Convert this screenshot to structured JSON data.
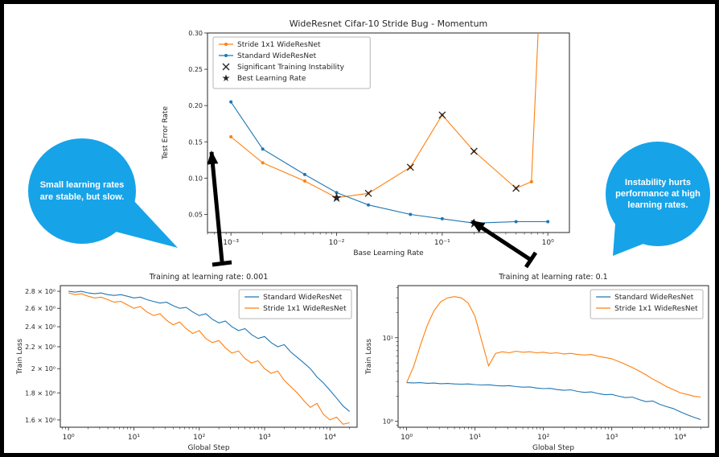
{
  "callouts": {
    "left": {
      "text": "Small learning rates are stable, but slow.",
      "color": "#17a3e8",
      "text_color": "#ffffff"
    },
    "right": {
      "text": "Instability hurts performance at high learning rates.",
      "color": "#17a3e8",
      "text_color": "#ffffff"
    }
  },
  "colors": {
    "standard": "#1f77b4",
    "stride": "#ff7f0e",
    "marker": "#262626",
    "frame": "#000000"
  },
  "chart_data": [
    {
      "type": "line",
      "title": "WideResnet Cifar-10 Stride Bug - Momentum",
      "title_size": 11,
      "xlabel": "Base Learning Rate",
      "ylabel": "Test Error Rate",
      "xscale": "log",
      "yscale": "linear",
      "xlim": [
        0.0006,
        1.6
      ],
      "ylim": [
        0.025,
        0.3
      ],
      "margins": {
        "l": 58,
        "r": 12,
        "t": 30,
        "b": 42
      },
      "xticks": [
        {
          "v": 0.001,
          "label": "10⁻³"
        },
        {
          "v": 0.01,
          "label": "10⁻²"
        },
        {
          "v": 0.1,
          "label": "10⁻¹"
        },
        {
          "v": 1,
          "label": "10⁰"
        }
      ],
      "yticks": [
        {
          "v": 0.05,
          "label": "0.05"
        },
        {
          "v": 0.1,
          "label": "0.10"
        },
        {
          "v": 0.15,
          "label": "0.15"
        },
        {
          "v": 0.2,
          "label": "0.20"
        },
        {
          "v": 0.25,
          "label": "0.25"
        },
        {
          "v": 0.3,
          "label": "0.30"
        }
      ],
      "legend_position": "upper left",
      "legend": [
        {
          "label": "Stride 1x1 WideResNet",
          "glyph": "line-dot",
          "color": "#ff7f0e"
        },
        {
          "label": "Standard WideResNet",
          "glyph": "line-dot",
          "color": "#1f77b4"
        },
        {
          "label": "Significant Training Instability",
          "glyph": "x",
          "color": "#262626"
        },
        {
          "label": "Best Learning Rate",
          "glyph": "star",
          "color": "#000000"
        }
      ],
      "series": [
        {
          "name": "Stride 1x1 WideResNet",
          "color": "#ff7f0e",
          "marker": "dot",
          "x": [
            0.001,
            0.002,
            0.005,
            0.01,
            0.02,
            0.05,
            0.1,
            0.2,
            0.5,
            0.7,
            1.0
          ],
          "y": [
            0.157,
            0.121,
            0.096,
            0.073,
            0.079,
            0.115,
            0.187,
            0.137,
            0.086,
            0.095,
            0.6
          ]
        },
        {
          "name": "Standard WideResNet",
          "color": "#1f77b4",
          "marker": "dot",
          "x": [
            0.001,
            0.002,
            0.005,
            0.01,
            0.02,
            0.05,
            0.1,
            0.2,
            0.5,
            1.0
          ],
          "y": [
            0.205,
            0.14,
            0.105,
            0.08,
            0.063,
            0.05,
            0.044,
            0.038,
            0.04,
            0.04
          ]
        }
      ],
      "markers": [
        {
          "type": "x",
          "color": "#262626",
          "label": "Significant Training Instability",
          "points": [
            [
              0.02,
              0.079
            ],
            [
              0.05,
              0.115
            ],
            [
              0.1,
              0.187
            ],
            [
              0.2,
              0.137
            ],
            [
              0.5,
              0.086
            ]
          ]
        },
        {
          "type": "star",
          "color": "#ff7f0e",
          "label": "Best Learning Rate (Stride 1x1)",
          "points": [
            [
              0.01,
              0.073
            ]
          ]
        },
        {
          "type": "star",
          "color": "#1f77b4",
          "label": "Best Learning Rate (Standard)",
          "points": [
            [
              0.2,
              0.038
            ]
          ]
        }
      ]
    },
    {
      "type": "line",
      "title": "Training at learning rate: 0.001",
      "title_size": 9.5,
      "xlabel": "Global Step",
      "ylabel": "Train Loss",
      "xscale": "log",
      "yscale": "log",
      "xlim": [
        0.75,
        26000
      ],
      "ylim": [
        1.55,
        2.87
      ],
      "margins": {
        "l": 56,
        "r": 10,
        "t": 20,
        "b": 36
      },
      "xticks": [
        {
          "v": 1,
          "label": "10⁰"
        },
        {
          "v": 10,
          "label": "10¹"
        },
        {
          "v": 100,
          "label": "10²"
        },
        {
          "v": 1000,
          "label": "10³"
        },
        {
          "v": 10000,
          "label": "10⁴"
        }
      ],
      "yticks": [
        {
          "v": 1.6,
          "label": "1.6 × 10⁰"
        },
        {
          "v": 1.8,
          "label": "1.8 × 10⁰"
        },
        {
          "v": 2.0,
          "label": "2 × 10⁰"
        },
        {
          "v": 2.2,
          "label": "2.2 × 10⁰"
        },
        {
          "v": 2.4,
          "label": "2.4 × 10⁰"
        },
        {
          "v": 2.6,
          "label": "2.6 × 10⁰"
        },
        {
          "v": 2.8,
          "label": "2.8 × 10⁰"
        }
      ],
      "legend_position": "upper right",
      "legend": [
        {
          "label": "Standard WideResNet",
          "glyph": "line",
          "color": "#1f77b4"
        },
        {
          "label": "Stride 1x1 WideResNet",
          "glyph": "line",
          "color": "#ff7f0e"
        }
      ],
      "x": [
        1,
        1.26,
        1.58,
        2,
        2.51,
        3.16,
        3.98,
        5.01,
        6.31,
        7.94,
        10,
        12.6,
        15.8,
        20,
        25.1,
        31.6,
        39.8,
        50.1,
        63.1,
        79.4,
        100,
        126,
        158,
        200,
        251,
        316,
        398,
        501,
        631,
        794,
        1000,
        1259,
        1585,
        1995,
        2512,
        3162,
        3981,
        5012,
        6310,
        7943,
        10000,
        12589,
        15849,
        19953
      ],
      "series": [
        {
          "name": "Standard WideResNet",
          "color": "#1f77b4",
          "marker": "none",
          "y": [
            2.8,
            2.79,
            2.8,
            2.78,
            2.77,
            2.78,
            2.76,
            2.75,
            2.76,
            2.74,
            2.72,
            2.73,
            2.7,
            2.68,
            2.66,
            2.67,
            2.63,
            2.6,
            2.61,
            2.56,
            2.52,
            2.54,
            2.48,
            2.44,
            2.46,
            2.4,
            2.36,
            2.38,
            2.32,
            2.28,
            2.3,
            2.24,
            2.2,
            2.22,
            2.15,
            2.1,
            2.05,
            2.0,
            1.93,
            1.88,
            1.82,
            1.76,
            1.7,
            1.66
          ]
        },
        {
          "name": "Stride 1x1 WideResNet",
          "color": "#ff7f0e",
          "marker": "none",
          "y": [
            2.78,
            2.76,
            2.77,
            2.74,
            2.72,
            2.73,
            2.7,
            2.67,
            2.68,
            2.64,
            2.6,
            2.62,
            2.56,
            2.52,
            2.54,
            2.47,
            2.42,
            2.45,
            2.38,
            2.33,
            2.36,
            2.28,
            2.24,
            2.26,
            2.19,
            2.14,
            2.16,
            2.09,
            2.05,
            2.07,
            2.0,
            1.96,
            1.98,
            1.9,
            1.85,
            1.8,
            1.74,
            1.69,
            1.72,
            1.64,
            1.6,
            1.62,
            1.57,
            1.58
          ]
        }
      ]
    },
    {
      "type": "line",
      "title": "Training at learning rate: 0.1",
      "title_size": 9.5,
      "xlabel": "Global Step",
      "ylabel": "Train Loss",
      "xscale": "log",
      "yscale": "log",
      "y_minor": true,
      "xlim": [
        0.75,
        26000
      ],
      "ylim": [
        0.85,
        42
      ],
      "margins": {
        "l": 42,
        "r": 8,
        "t": 20,
        "b": 36
      },
      "xticks": [
        {
          "v": 1,
          "label": "10⁰"
        },
        {
          "v": 10,
          "label": "10¹"
        },
        {
          "v": 100,
          "label": "10²"
        },
        {
          "v": 1000,
          "label": "10³"
        },
        {
          "v": 10000,
          "label": "10⁴"
        }
      ],
      "yticks": [
        {
          "v": 1,
          "label": "10⁰"
        },
        {
          "v": 10,
          "label": "10¹"
        }
      ],
      "legend_position": "upper right",
      "legend": [
        {
          "label": "Standard WideResNet",
          "glyph": "line",
          "color": "#1f77b4"
        },
        {
          "label": "Stride 1x1 WideResNet",
          "glyph": "line",
          "color": "#ff7f0e"
        }
      ],
      "x": [
        1,
        1.26,
        1.58,
        2,
        2.51,
        3.16,
        3.98,
        5.01,
        6.31,
        7.94,
        10,
        12.6,
        15.8,
        20,
        25.1,
        31.6,
        39.8,
        50.1,
        63.1,
        79.4,
        100,
        126,
        158,
        200,
        251,
        316,
        398,
        501,
        631,
        794,
        1000,
        1259,
        1585,
        1995,
        2512,
        3162,
        3981,
        5012,
        6310,
        7943,
        10000,
        12589,
        15849,
        19953
      ],
      "series": [
        {
          "name": "Standard WideResNet",
          "color": "#1f77b4",
          "marker": "none",
          "y": [
            2.9,
            2.88,
            2.9,
            2.85,
            2.87,
            2.82,
            2.84,
            2.8,
            2.78,
            2.8,
            2.75,
            2.72,
            2.74,
            2.68,
            2.65,
            2.67,
            2.6,
            2.56,
            2.58,
            2.5,
            2.46,
            2.48,
            2.4,
            2.35,
            2.38,
            2.28,
            2.22,
            2.25,
            2.15,
            2.08,
            2.1,
            2.0,
            1.92,
            1.95,
            1.82,
            1.72,
            1.75,
            1.6,
            1.5,
            1.42,
            1.3,
            1.2,
            1.12,
            1.05
          ]
        },
        {
          "name": "Stride 1x1 WideResNet",
          "color": "#ff7f0e",
          "marker": "none",
          "y": [
            2.9,
            4.5,
            8.0,
            14.0,
            21.0,
            27.0,
            30.0,
            31.0,
            30.0,
            26.0,
            18.0,
            9.0,
            4.6,
            6.5,
            6.8,
            6.6,
            6.9,
            6.7,
            6.8,
            6.6,
            6.7,
            6.5,
            6.6,
            6.4,
            6.5,
            6.3,
            6.2,
            6.3,
            6.0,
            5.8,
            5.6,
            5.2,
            4.8,
            4.4,
            4.0,
            3.6,
            3.2,
            2.9,
            2.6,
            2.4,
            2.2,
            2.1,
            2.0,
            1.95
          ]
        }
      ]
    }
  ]
}
